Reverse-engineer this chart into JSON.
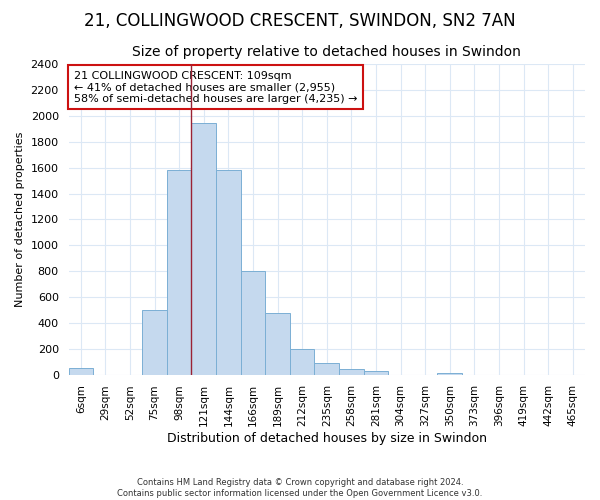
{
  "title": "21, COLLINGWOOD CRESCENT, SWINDON, SN2 7AN",
  "subtitle": "Size of property relative to detached houses in Swindon",
  "xlabel": "Distribution of detached houses by size in Swindon",
  "ylabel": "Number of detached properties",
  "footer_line1": "Contains HM Land Registry data © Crown copyright and database right 2024.",
  "footer_line2": "Contains public sector information licensed under the Open Government Licence v3.0.",
  "bar_labels": [
    "6sqm",
    "29sqm",
    "52sqm",
    "75sqm",
    "98sqm",
    "121sqm",
    "144sqm",
    "166sqm",
    "189sqm",
    "212sqm",
    "235sqm",
    "258sqm",
    "281sqm",
    "304sqm",
    "327sqm",
    "350sqm",
    "373sqm",
    "396sqm",
    "419sqm",
    "442sqm",
    "465sqm"
  ],
  "bar_values": [
    50,
    0,
    0,
    500,
    1580,
    1950,
    1580,
    800,
    480,
    200,
    90,
    40,
    30,
    0,
    0,
    15,
    0,
    0,
    0,
    0,
    0
  ],
  "bar_color": "#c5d9ee",
  "bar_edge_color": "#7bafd4",
  "vline_x": 4.5,
  "vline_color": "#9b2335",
  "annotation_text": "21 COLLINGWOOD CRESCENT: 109sqm\n← 41% of detached houses are smaller (2,955)\n58% of semi-detached houses are larger (4,235) →",
  "annotation_box_color": "#cc1111",
  "ylim": [
    0,
    2400
  ],
  "yticks": [
    0,
    200,
    400,
    600,
    800,
    1000,
    1200,
    1400,
    1600,
    1800,
    2000,
    2200,
    2400
  ],
  "bg_color": "#ffffff",
  "grid_color": "#dce8f5",
  "title_fontsize": 12,
  "subtitle_fontsize": 10
}
